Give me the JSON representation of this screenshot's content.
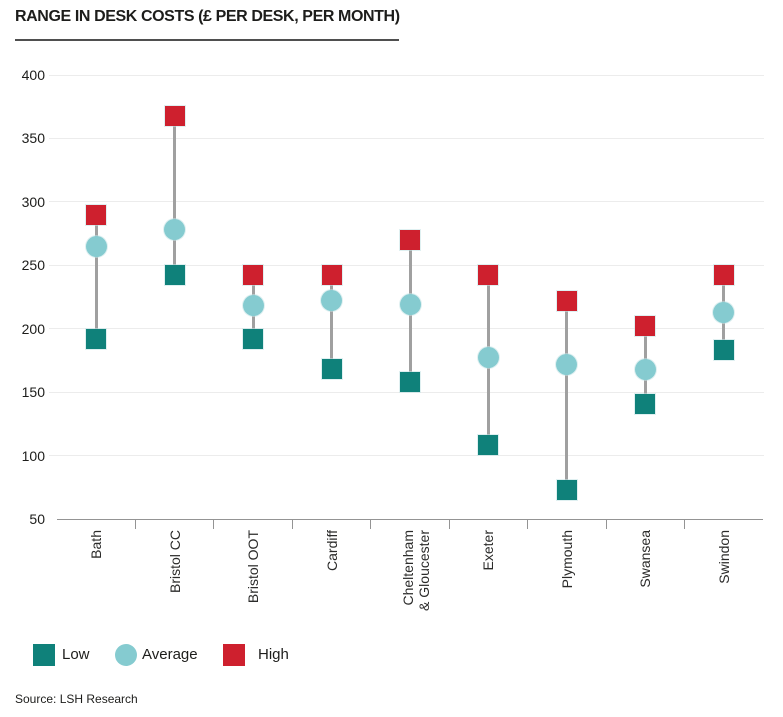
{
  "source_note": "Source: LSH Research",
  "colors": {
    "low": "#0F817A",
    "average": "#85CBD0",
    "high": "#CE202E",
    "gridline": "#ECECEC",
    "axis": "#949494",
    "range_line": "#A0A0A0"
  },
  "chart_data": {
    "type": "scatter",
    "subtype": "low-average-high range plot (vertical dumbbell)",
    "title": "RANGE IN DESK COSTS (£ PER DESK, PER MONTH)",
    "categories": [
      "Bath",
      "Bristol CC",
      "Bristol OOT",
      "Cardiff",
      "Cheltenham\n& Gloucester",
      "Exeter",
      "Plymouth",
      "Swansea",
      "Swindon"
    ],
    "series": [
      {
        "name": "Low",
        "marker": "square",
        "color": "#0F817A",
        "values": [
          192,
          242,
          192,
          168,
          158,
          108,
          73,
          141,
          183
        ]
      },
      {
        "name": "Average",
        "marker": "circle",
        "color": "#85CBD0",
        "values": [
          265,
          278,
          218,
          222,
          219,
          177,
          172,
          168,
          213
        ]
      },
      {
        "name": "High",
        "marker": "square",
        "color": "#CE202E",
        "values": [
          290,
          368,
          242,
          242,
          270,
          242,
          222,
          202,
          242
        ]
      }
    ],
    "xlabel": "",
    "ylabel": "",
    "ylim": [
      50,
      400
    ],
    "ytick_step": 50,
    "grid": true,
    "legend_position": "bottom"
  }
}
